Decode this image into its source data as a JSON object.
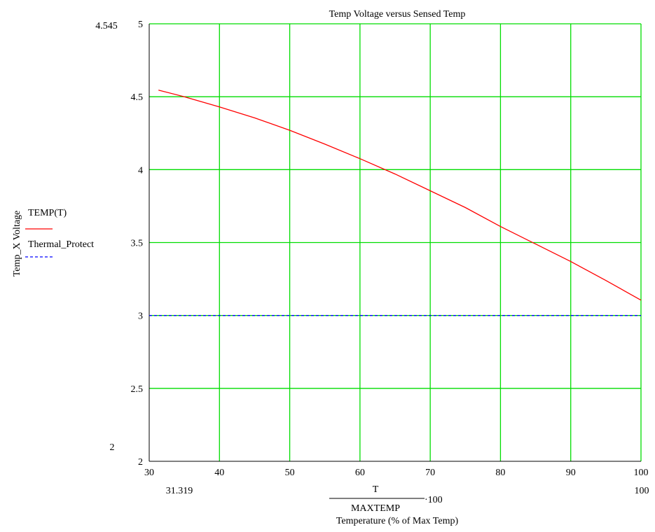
{
  "chart_data": {
    "type": "line",
    "title": "Temp Voltage versus Sensed Temp",
    "xlabel": "Temperature (% of Max Temp)",
    "ylabel": "Temp_X Voltage",
    "x_expression": {
      "numerator": "T",
      "denominator": "MAXTEMP",
      "multiplier": "·100"
    },
    "xlim": [
      30,
      100
    ],
    "ylim": [
      2,
      5
    ],
    "x_ticks": [
      30,
      40,
      50,
      60,
      70,
      80,
      90,
      100
    ],
    "x_tick_labels": [
      "30",
      "40",
      "50",
      "60",
      "70",
      "80",
      "90",
      "100"
    ],
    "y_ticks": [
      2,
      2.5,
      3,
      3.5,
      4,
      4.5,
      5
    ],
    "y_tick_labels": [
      "2",
      "2.5",
      "3",
      "3.5",
      "4",
      "4.5",
      "5"
    ],
    "x_range_labels": [
      "31.319",
      "100"
    ],
    "y_range_labels": [
      "4.545",
      "2"
    ],
    "grid": true,
    "grid_color": "#00dd00",
    "legend_position": "left",
    "series": [
      {
        "name": "TEMP(T)",
        "color": "#ff0000",
        "dash": "solid",
        "x": [
          31.319,
          35,
          40,
          45,
          50,
          55,
          60,
          65,
          70,
          75,
          80,
          85,
          90,
          95,
          100
        ],
        "y": [
          4.545,
          4.5,
          4.43,
          4.355,
          4.27,
          4.175,
          4.075,
          3.97,
          3.855,
          3.74,
          3.61,
          3.49,
          3.37,
          3.24,
          3.105
        ]
      },
      {
        "name": "Thermal_Protect",
        "color": "#0000ff",
        "dash": "dashed",
        "x": [
          30,
          100
        ],
        "y": [
          3,
          3
        ]
      }
    ]
  }
}
